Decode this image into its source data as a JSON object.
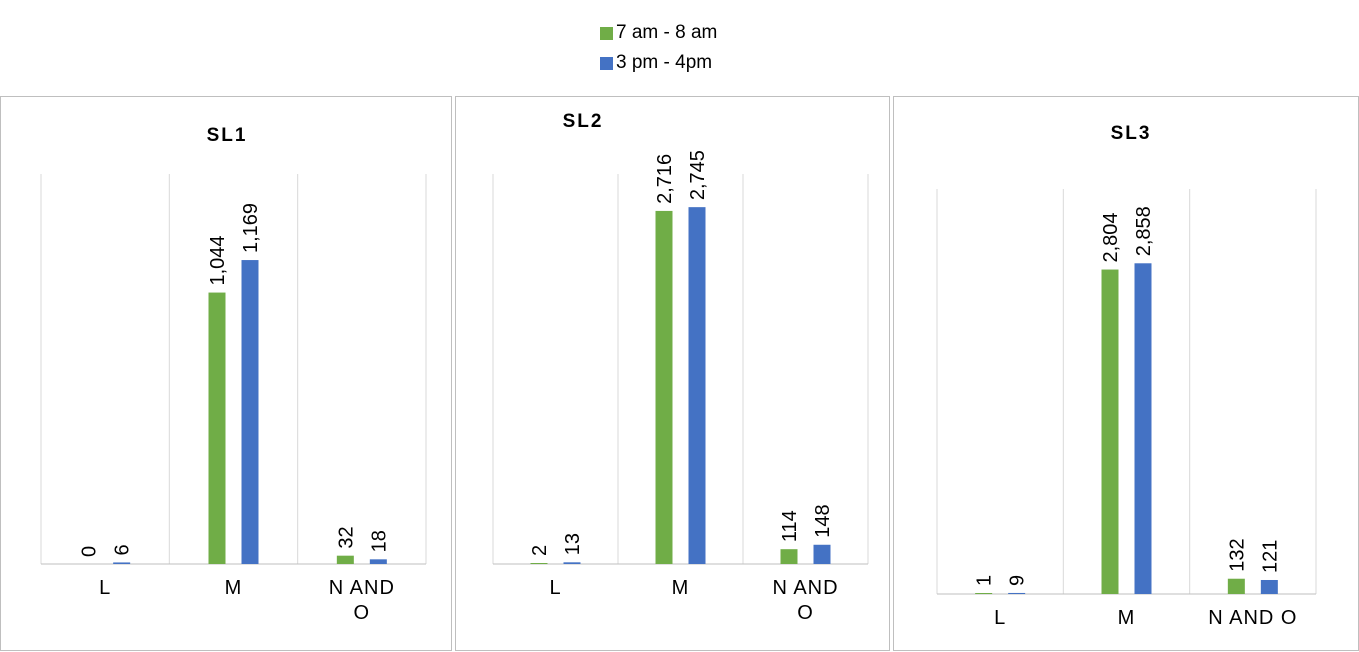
{
  "legend": {
    "items": [
      {
        "label": "7 am - 8 am",
        "color": "#70ad47"
      },
      {
        "label": "3 pm -  4pm",
        "color": "#4472c4"
      }
    ]
  },
  "chart_data": [
    {
      "type": "bar",
      "title": "SL1",
      "categories": [
        "L",
        "M",
        "N AND\nO"
      ],
      "series": [
        {
          "name": "7 am - 8 am",
          "values": [
            0,
            1044,
            32
          ]
        },
        {
          "name": "3 pm -  4pm",
          "values": [
            6,
            1169,
            18
          ]
        }
      ],
      "value_labels": [
        [
          "0",
          "1,044",
          "32"
        ],
        [
          "6",
          "1,169",
          "18"
        ]
      ]
    },
    {
      "type": "bar",
      "title": "SL2",
      "categories": [
        "L",
        "M",
        "N AND\nO"
      ],
      "series": [
        {
          "name": "7 am - 8 am",
          "values": [
            2,
            2716,
            114
          ]
        },
        {
          "name": "3 pm -  4pm",
          "values": [
            13,
            2745,
            148
          ]
        }
      ],
      "value_labels": [
        [
          "2",
          "2,716",
          "114"
        ],
        [
          "13",
          "2,745",
          "148"
        ]
      ]
    },
    {
      "type": "bar",
      "title": "SL3",
      "categories": [
        "L",
        "M",
        "N AND O"
      ],
      "series": [
        {
          "name": "7 am - 8 am",
          "values": [
            1,
            2804,
            132
          ]
        },
        {
          "name": "3 pm -  4pm",
          "values": [
            9,
            2858,
            121
          ]
        }
      ],
      "value_labels": [
        [
          "1",
          "2,804",
          "132"
        ],
        [
          "9",
          "2,858",
          "121"
        ]
      ]
    }
  ]
}
